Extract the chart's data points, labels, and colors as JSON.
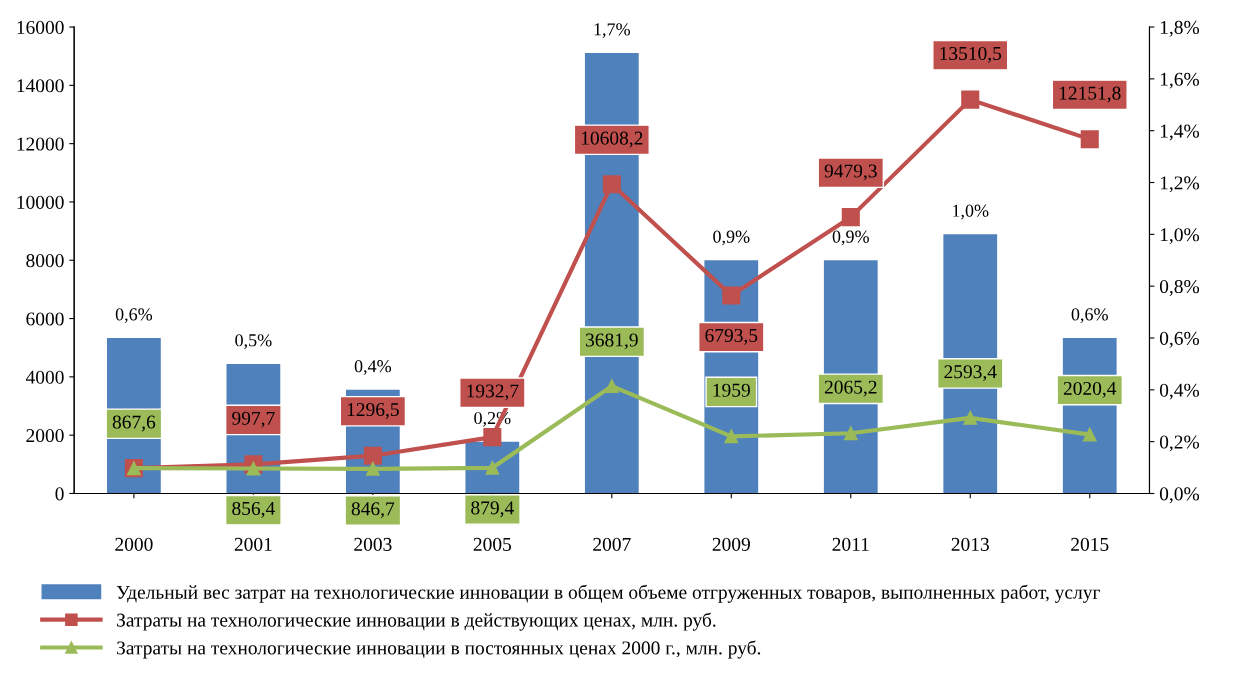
{
  "chart_data": {
    "type": "bar",
    "categories": [
      "2000",
      "2001",
      "2003",
      "2005",
      "2007",
      "2009",
      "2011",
      "2013",
      "2015"
    ],
    "series": [
      {
        "name": "Удельный вес затрат на технологические инновации в общем объеме отгруженных товаров, выполненных работ, услуг",
        "axis": "y2",
        "color": "#4f81bd",
        "values": [
          0.6,
          0.5,
          0.4,
          0.2,
          1.7,
          0.9,
          0.9,
          1.0,
          0.6
        ],
        "value_labels": [
          "0,6%",
          "0,5%",
          "0,4%",
          "0,2%",
          "1,7%",
          "0,9%",
          "0,9%",
          "1,0%",
          "0,6%"
        ]
      },
      {
        "name": "Затраты на технологические инновации в действующих ценах, млн. руб.",
        "type": "line",
        "marker": "square",
        "color": "#c0504d",
        "values": [
          870,
          997.7,
          1296.5,
          1932.7,
          10608.2,
          6793.5,
          9479.3,
          13510.5,
          12151.8
        ],
        "value_labels": [
          null,
          "997,7",
          "1296,5",
          "1932,7",
          "10608,2",
          "6793,5",
          "9479,3",
          "13510,5",
          "12151,8"
        ]
      },
      {
        "name": "Затраты на технологические инновации в постоянных ценах 2000 г., млн. руб.",
        "type": "line",
        "marker": "triangle",
        "color": "#9bbb59",
        "values": [
          867.6,
          856.4,
          846.7,
          879.4,
          3681.9,
          1959,
          2065.2,
          2593.4,
          2020.4
        ],
        "value_labels": [
          "867,6",
          "856,4",
          "846,7",
          "879,4",
          "3681,9",
          "1959",
          "2065,2",
          "2593,4",
          "2020,4"
        ]
      }
    ],
    "ylim": [
      0,
      16000
    ],
    "yticks": [
      0,
      2000,
      4000,
      6000,
      8000,
      10000,
      12000,
      14000,
      16000
    ],
    "y2lim": [
      0,
      1.8
    ],
    "y2ticks": [
      {
        "value": 0,
        "label": "0,0%"
      },
      {
        "value": 0.2,
        "label": "0,2%"
      },
      {
        "value": 0.4,
        "label": "0,4%"
      },
      {
        "value": 0.6,
        "label": "0,6%"
      },
      {
        "value": 0.8,
        "label": "0,8%"
      },
      {
        "value": 1.0,
        "label": "1,0%"
      },
      {
        "value": 1.2,
        "label": "1,2%"
      },
      {
        "value": 1.4,
        "label": "1,4%"
      },
      {
        "value": 1.6,
        "label": "1,6%"
      },
      {
        "value": 1.8,
        "label": "1,8%"
      }
    ],
    "grid": false,
    "legend": "bottom",
    "line_style": "solid"
  }
}
